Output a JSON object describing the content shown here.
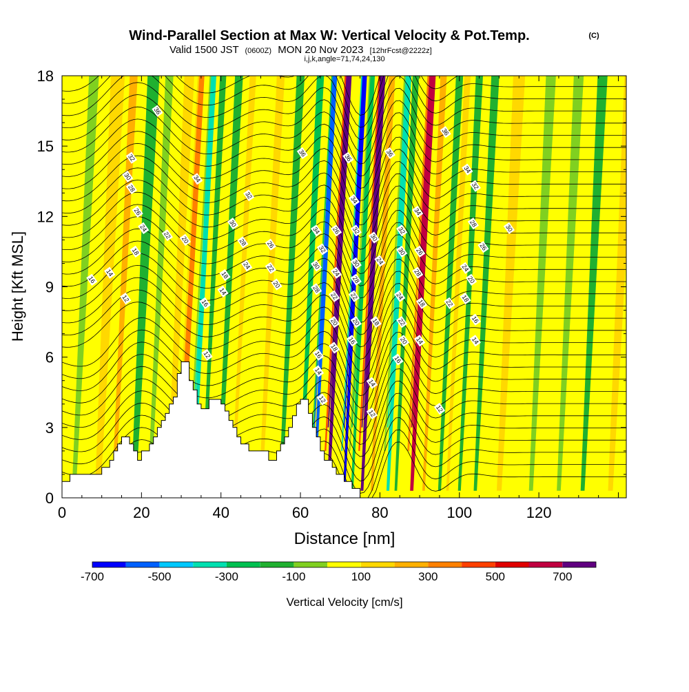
{
  "chart_data": {
    "type": "heatmap",
    "title": "Wind-Parallel Section at Max W: Vertical Velocity & Pot.Temp.",
    "title_mark": "(C)",
    "subtitle": {
      "valid_prefix": "Valid 1500 JST",
      "utc": "(0600Z)",
      "date": "MON 20 Nov 2023",
      "forecast": "[12hrFcst@2222z]"
    },
    "indices": "i,j,k,angle=71,74,24,130",
    "xlabel": "Distance [nm]",
    "ylabel": "Height [Kft MSL]",
    "xlim": [
      0,
      142
    ],
    "ylim": [
      0,
      18
    ],
    "x_ticks": [
      "0",
      "20",
      "40",
      "60",
      "80",
      "100",
      "120"
    ],
    "x_tick_values": [
      0,
      20,
      40,
      60,
      80,
      100,
      120
    ],
    "y_ticks": [
      "0",
      "3",
      "6",
      "9",
      "12",
      "15",
      "18"
    ],
    "y_tick_values": [
      0,
      3,
      6,
      9,
      12,
      15,
      18
    ],
    "colorbar": {
      "label": "Vertical Velocity [cm/s]",
      "levels": [
        -700,
        -600,
        -500,
        -400,
        -300,
        -200,
        -100,
        0,
        100,
        200,
        300,
        400,
        500,
        600,
        700,
        800
      ],
      "tick_labels": [
        "-700",
        "-500",
        "-300",
        "-100",
        "100",
        "300",
        "500",
        "700"
      ],
      "tick_values": [
        -700,
        -500,
        -300,
        -100,
        100,
        300,
        500,
        700
      ],
      "colors": [
        "#0000ff",
        "#0060ff",
        "#00c8ff",
        "#00e0b0",
        "#00c050",
        "#20b030",
        "#80d020",
        "#ffff00",
        "#ffd800",
        "#ffb000",
        "#ff8000",
        "#ff4000",
        "#e00000",
        "#c00040",
        "#600080"
      ]
    },
    "terrain": [
      [
        0,
        0.7
      ],
      [
        2,
        0.7
      ],
      [
        2,
        1.0
      ],
      [
        10,
        1.0
      ],
      [
        10,
        1.3
      ],
      [
        12,
        1.3
      ],
      [
        12,
        1.6
      ],
      [
        13,
        1.6
      ],
      [
        13,
        2.0
      ],
      [
        14,
        2.0
      ],
      [
        14,
        2.3
      ],
      [
        15,
        2.3
      ],
      [
        15,
        2.6
      ],
      [
        17,
        2.6
      ],
      [
        17,
        2.3
      ],
      [
        18,
        2.3
      ],
      [
        18,
        2.0
      ],
      [
        19,
        2.0
      ],
      [
        19,
        1.6
      ],
      [
        20,
        1.6
      ],
      [
        20,
        2.0
      ],
      [
        22,
        2.0
      ],
      [
        22,
        2.3
      ],
      [
        23,
        2.3
      ],
      [
        23,
        2.6
      ],
      [
        24,
        2.6
      ],
      [
        24,
        3.0
      ],
      [
        25,
        3.0
      ],
      [
        25,
        3.3
      ],
      [
        26,
        3.3
      ],
      [
        26,
        3.6
      ],
      [
        27,
        3.6
      ],
      [
        27,
        4.0
      ],
      [
        28,
        4.0
      ],
      [
        28,
        4.3
      ],
      [
        29,
        4.3
      ],
      [
        29,
        5.3
      ],
      [
        30,
        5.3
      ],
      [
        30,
        5.8
      ],
      [
        32,
        5.8
      ],
      [
        32,
        5.0
      ],
      [
        33,
        5.0
      ],
      [
        33,
        4.6
      ],
      [
        34,
        4.6
      ],
      [
        34,
        4.0
      ],
      [
        35,
        4.0
      ],
      [
        35,
        3.8
      ],
      [
        37,
        3.8
      ],
      [
        37,
        4.2
      ],
      [
        40,
        4.2
      ],
      [
        40,
        4.0
      ],
      [
        41,
        4.0
      ],
      [
        41,
        3.7
      ],
      [
        42,
        3.7
      ],
      [
        42,
        3.3
      ],
      [
        43,
        3.3
      ],
      [
        43,
        3.0
      ],
      [
        44,
        3.0
      ],
      [
        44,
        2.6
      ],
      [
        45,
        2.6
      ],
      [
        45,
        2.3
      ],
      [
        47,
        2.3
      ],
      [
        47,
        2.0
      ],
      [
        52,
        2.0
      ],
      [
        52,
        1.6
      ],
      [
        54,
        1.6
      ],
      [
        54,
        2.0
      ],
      [
        55,
        2.0
      ],
      [
        55,
        2.3
      ],
      [
        56,
        2.3
      ],
      [
        56,
        2.6
      ],
      [
        57,
        2.6
      ],
      [
        57,
        3.0
      ],
      [
        58,
        3.0
      ],
      [
        58,
        3.5
      ],
      [
        59,
        3.5
      ],
      [
        59,
        4.0
      ],
      [
        60,
        4.0
      ],
      [
        60,
        4.2
      ],
      [
        62,
        4.2
      ],
      [
        62,
        3.6
      ],
      [
        63,
        3.6
      ],
      [
        63,
        3.0
      ],
      [
        64,
        3.0
      ],
      [
        64,
        2.6
      ],
      [
        65,
        2.6
      ],
      [
        65,
        2.0
      ],
      [
        66,
        2.0
      ],
      [
        66,
        1.6
      ],
      [
        68,
        1.6
      ],
      [
        68,
        1.3
      ],
      [
        69,
        1.3
      ],
      [
        69,
        1.0
      ],
      [
        71,
        1.0
      ],
      [
        71,
        0.7
      ],
      [
        73,
        0.7
      ],
      [
        73,
        0.4
      ],
      [
        75,
        0.4
      ],
      [
        75,
        0
      ],
      [
        142,
        0
      ]
    ],
    "w_bands": [
      {
        "x": 3,
        "w": -100,
        "width": 2.5
      },
      {
        "x": 9,
        "w": 100,
        "width": 3.5
      },
      {
        "x": 13,
        "w": 200,
        "width": 2
      },
      {
        "x": 18,
        "w": -150,
        "width": 3
      },
      {
        "x": 22,
        "w": -100,
        "width": 2
      },
      {
        "x": 27,
        "w": 150,
        "width": 2.5
      },
      {
        "x": 30,
        "w": 300,
        "width": 1.6
      },
      {
        "x": 33,
        "w": -400,
        "width": 1.6
      },
      {
        "x": 35.5,
        "w": -200,
        "width": 1.6
      },
      {
        "x": 39.5,
        "w": -180,
        "width": 2
      },
      {
        "x": 43,
        "w": 120,
        "width": 1.6
      },
      {
        "x": 50,
        "w": 150,
        "width": 2
      },
      {
        "x": 55,
        "w": -150,
        "width": 2
      },
      {
        "x": 60,
        "w": -250,
        "width": 1.8
      },
      {
        "x": 63.5,
        "w": -550,
        "width": 1.4
      },
      {
        "x": 67,
        "w": 750,
        "width": 1.7
      },
      {
        "x": 71,
        "w": -700,
        "width": 1.4
      },
      {
        "x": 73,
        "w": -300,
        "width": 1.4
      },
      {
        "x": 75.5,
        "w": 700,
        "width": 1.7
      },
      {
        "x": 78,
        "w": 250,
        "width": 1.6
      },
      {
        "x": 82,
        "w": -350,
        "width": 1.8
      },
      {
        "x": 84,
        "w": -120,
        "width": 1.6
      },
      {
        "x": 88,
        "w": 650,
        "width": 2
      },
      {
        "x": 91,
        "w": 250,
        "width": 1.6
      },
      {
        "x": 95,
        "w": -200,
        "width": 1.8
      },
      {
        "x": 97,
        "w": 150,
        "width": 1.6
      },
      {
        "x": 100,
        "w": -200,
        "width": 1.8
      },
      {
        "x": 104,
        "w": -120,
        "width": 2
      },
      {
        "x": 110,
        "w": 100,
        "width": 3
      },
      {
        "x": 118,
        "w": -100,
        "width": 2.5
      },
      {
        "x": 125,
        "w": -100,
        "width": 2.5
      },
      {
        "x": 131,
        "w": -120,
        "width": 2.5
      },
      {
        "x": 138,
        "w": 100,
        "width": 3
      }
    ],
    "theta_labels": [
      {
        "x": 24,
        "y": 16.5,
        "text": "36"
      },
      {
        "x": 17.5,
        "y": 14.5,
        "text": "32"
      },
      {
        "x": 16.5,
        "y": 13.7,
        "text": "30"
      },
      {
        "x": 17.5,
        "y": 13.2,
        "text": "28"
      },
      {
        "x": 19,
        "y": 12.2,
        "text": "26"
      },
      {
        "x": 20.5,
        "y": 11.5,
        "text": "24"
      },
      {
        "x": 26.5,
        "y": 11.2,
        "text": "22"
      },
      {
        "x": 31,
        "y": 11.0,
        "text": "20"
      },
      {
        "x": 18.5,
        "y": 10.5,
        "text": "18"
      },
      {
        "x": 12,
        "y": 9.6,
        "text": "14"
      },
      {
        "x": 7.5,
        "y": 9.3,
        "text": "16"
      },
      {
        "x": 16,
        "y": 8.5,
        "text": "12"
      },
      {
        "x": 34,
        "y": 13.6,
        "text": "34"
      },
      {
        "x": 47,
        "y": 12.9,
        "text": "32"
      },
      {
        "x": 43,
        "y": 11.7,
        "text": "30"
      },
      {
        "x": 45.5,
        "y": 10.9,
        "text": "28"
      },
      {
        "x": 52.5,
        "y": 10.8,
        "text": "26"
      },
      {
        "x": 46.5,
        "y": 9.9,
        "text": "24"
      },
      {
        "x": 52.5,
        "y": 9.8,
        "text": "22"
      },
      {
        "x": 54,
        "y": 9.1,
        "text": "20"
      },
      {
        "x": 41,
        "y": 9.5,
        "text": "18"
      },
      {
        "x": 40.5,
        "y": 8.8,
        "text": "14"
      },
      {
        "x": 36,
        "y": 8.3,
        "text": "16"
      },
      {
        "x": 36.5,
        "y": 6.1,
        "text": "12"
      },
      {
        "x": 60.5,
        "y": 14.7,
        "text": "36"
      },
      {
        "x": 72,
        "y": 14.5,
        "text": "36"
      },
      {
        "x": 82.5,
        "y": 14.7,
        "text": "36"
      },
      {
        "x": 96.5,
        "y": 15.6,
        "text": "36"
      },
      {
        "x": 102,
        "y": 14.0,
        "text": "34"
      },
      {
        "x": 104,
        "y": 13.3,
        "text": "32"
      },
      {
        "x": 103.5,
        "y": 11.7,
        "text": "28"
      },
      {
        "x": 112.5,
        "y": 11.5,
        "text": "30"
      },
      {
        "x": 106,
        "y": 10.7,
        "text": "26"
      },
      {
        "x": 101.5,
        "y": 9.8,
        "text": "24"
      },
      {
        "x": 103,
        "y": 9.3,
        "text": "20"
      },
      {
        "x": 101.5,
        "y": 8.5,
        "text": "18"
      },
      {
        "x": 97.5,
        "y": 8.3,
        "text": "22"
      },
      {
        "x": 104,
        "y": 7.6,
        "text": "16"
      },
      {
        "x": 104,
        "y": 6.7,
        "text": "14"
      },
      {
        "x": 95,
        "y": 3.8,
        "text": "12"
      },
      {
        "x": 64,
        "y": 11.4,
        "text": "34"
      },
      {
        "x": 65.5,
        "y": 10.6,
        "text": "32"
      },
      {
        "x": 64,
        "y": 9.9,
        "text": "30"
      },
      {
        "x": 64,
        "y": 8.9,
        "text": "28"
      },
      {
        "x": 64.5,
        "y": 6.1,
        "text": "16"
      },
      {
        "x": 64.5,
        "y": 5.4,
        "text": "14"
      },
      {
        "x": 65.5,
        "y": 4.2,
        "text": "12"
      },
      {
        "x": 69,
        "y": 11.4,
        "text": "26"
      },
      {
        "x": 69,
        "y": 9.6,
        "text": "24"
      },
      {
        "x": 68.5,
        "y": 8.6,
        "text": "22"
      },
      {
        "x": 68.5,
        "y": 7.5,
        "text": "20"
      },
      {
        "x": 68.5,
        "y": 6.4,
        "text": "18"
      },
      {
        "x": 73.5,
        "y": 12.7,
        "text": "34"
      },
      {
        "x": 74,
        "y": 11.4,
        "text": "32"
      },
      {
        "x": 74,
        "y": 10.0,
        "text": "30"
      },
      {
        "x": 74,
        "y": 9.3,
        "text": "28"
      },
      {
        "x": 73.5,
        "y": 8.6,
        "text": "22"
      },
      {
        "x": 74,
        "y": 7.5,
        "text": "20"
      },
      {
        "x": 73,
        "y": 6.7,
        "text": "16"
      },
      {
        "x": 78.5,
        "y": 11.1,
        "text": "30"
      },
      {
        "x": 80,
        "y": 10.1,
        "text": "24"
      },
      {
        "x": 79,
        "y": 7.5,
        "text": "18"
      },
      {
        "x": 78,
        "y": 4.9,
        "text": "14"
      },
      {
        "x": 78,
        "y": 3.6,
        "text": "12"
      },
      {
        "x": 89.5,
        "y": 12.2,
        "text": "34"
      },
      {
        "x": 85.5,
        "y": 11.4,
        "text": "32"
      },
      {
        "x": 85.5,
        "y": 10.5,
        "text": "30"
      },
      {
        "x": 90,
        "y": 10.5,
        "text": "26"
      },
      {
        "x": 89.5,
        "y": 9.6,
        "text": "28"
      },
      {
        "x": 85,
        "y": 8.6,
        "text": "24"
      },
      {
        "x": 85.5,
        "y": 7.5,
        "text": "22"
      },
      {
        "x": 90.5,
        "y": 8.3,
        "text": "18"
      },
      {
        "x": 86,
        "y": 6.7,
        "text": "20"
      },
      {
        "x": 84.5,
        "y": 5.9,
        "text": "16"
      },
      {
        "x": 90,
        "y": 6.7,
        "text": "14"
      }
    ]
  }
}
